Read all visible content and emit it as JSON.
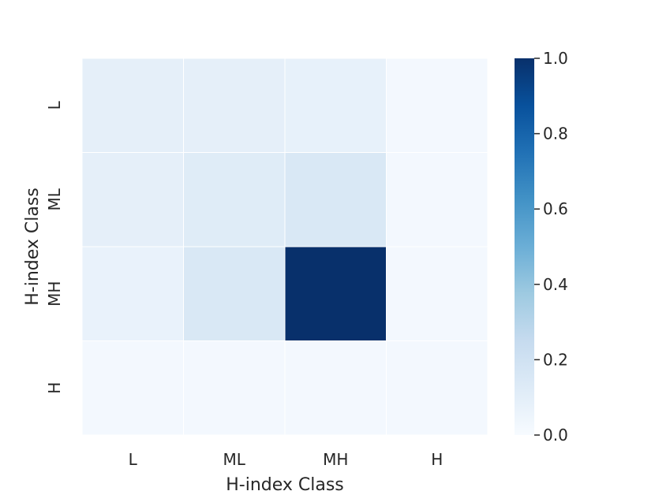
{
  "chart_data": {
    "type": "heatmap",
    "title": "",
    "xlabel": "H-index Class",
    "ylabel": "H-index Class",
    "x_categories": [
      "L",
      "ML",
      "MH",
      "H"
    ],
    "y_categories": [
      "L",
      "ML",
      "MH",
      "H"
    ],
    "values": [
      [
        0.09,
        0.09,
        0.08,
        0.02
      ],
      [
        0.09,
        0.12,
        0.15,
        0.02
      ],
      [
        0.07,
        0.15,
        1.0,
        0.02
      ],
      [
        0.02,
        0.02,
        0.02,
        0.02
      ]
    ],
    "colormap": "Blues",
    "colorbar": {
      "min": 0.0,
      "max": 1.0,
      "ticks": [
        0.0,
        0.2,
        0.4,
        0.6,
        0.8,
        1.0
      ],
      "tick_labels": [
        "0.0",
        "0.2",
        "0.4",
        "0.6",
        "0.8",
        "1.0"
      ]
    },
    "cell_border_color": "#ffffff",
    "grid": false
  }
}
